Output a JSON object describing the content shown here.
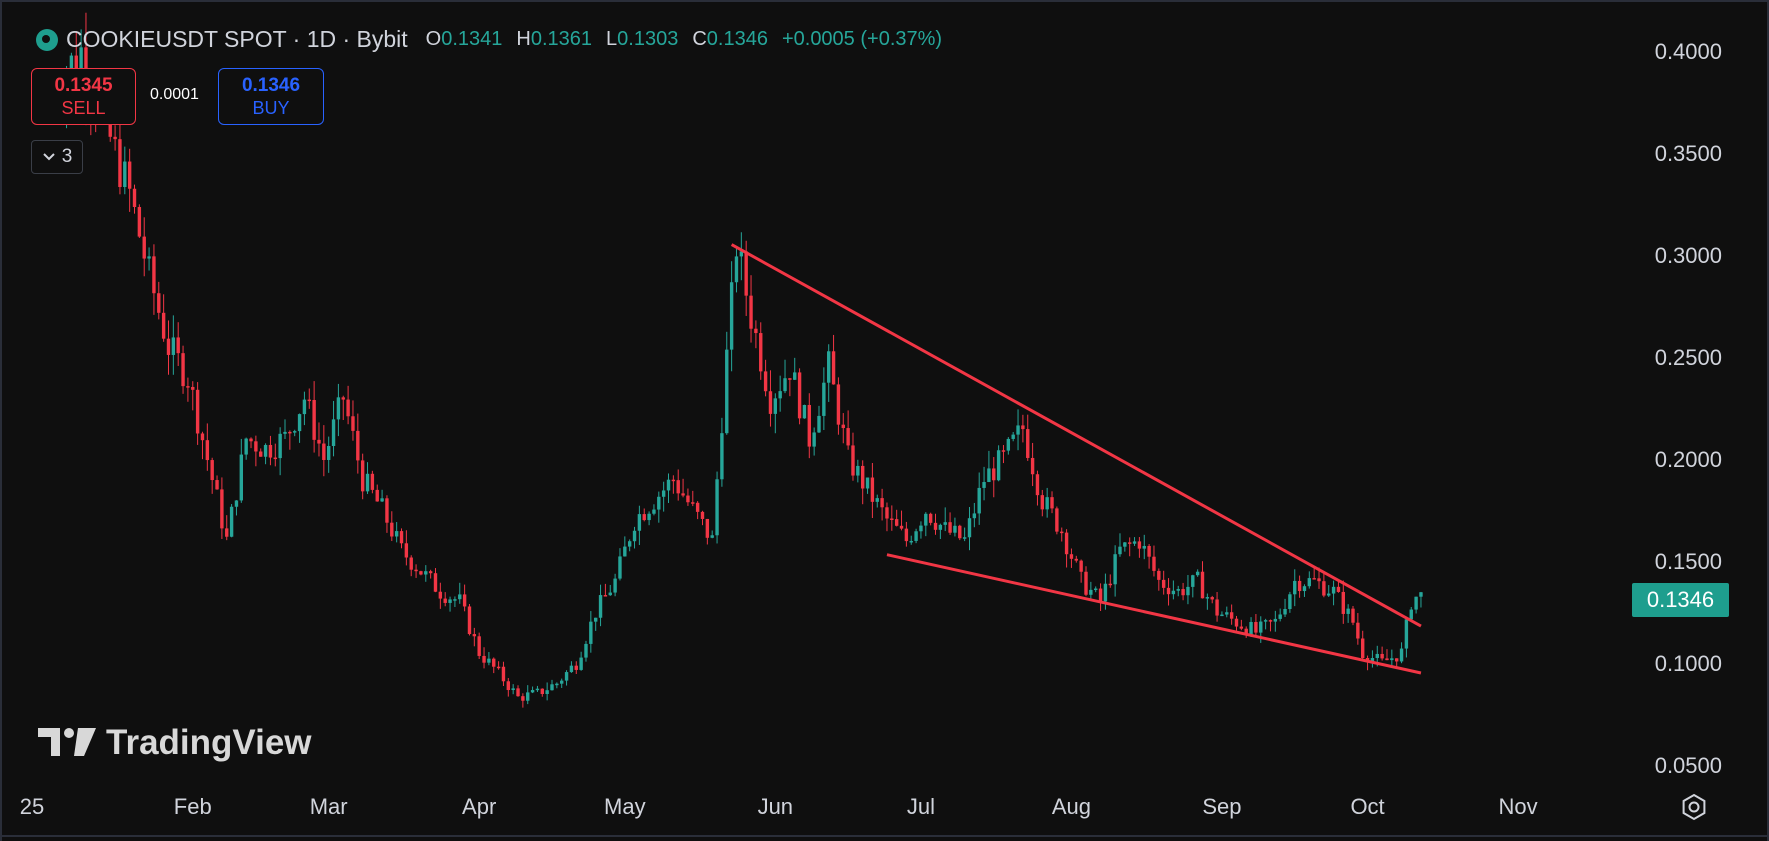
{
  "header": {
    "symbol": "COOKIEUSDT SPOT · 1D · Bybit",
    "open_label": "O",
    "open": "0.1341",
    "high_label": "H",
    "high": "0.1361",
    "low_label": "L",
    "low": "0.1303",
    "close_label": "C",
    "close": "0.1346",
    "change": "+0.0005 (+0.37%)"
  },
  "trade": {
    "sell_price": "0.1345",
    "sell_label": "SELL",
    "spread": "0.0001",
    "buy_price": "0.1346",
    "buy_label": "BUY"
  },
  "indicators_toggle": {
    "count": "3"
  },
  "watermark": "TradingView",
  "last_price_tag": "0.1346",
  "colors": {
    "up": "#26a69a",
    "down": "#f23645",
    "trendline": "#f23645",
    "background": "#0f0f0f",
    "text": "#d1d4dc"
  },
  "chart_data": {
    "type": "candlestick",
    "y_ticks": [
      "0.4000",
      "0.3500",
      "0.3000",
      "0.2500",
      "0.2000",
      "0.1500",
      "0.1000",
      "0.0500"
    ],
    "ylim": [
      0.045,
      0.42
    ],
    "x_ticks": [
      "25",
      "Feb",
      "Mar",
      "Apr",
      "May",
      "Jun",
      "Jul",
      "Aug",
      "Sep",
      "Oct",
      "Nov"
    ],
    "x_tick_days": [
      0,
      31,
      59,
      90,
      120,
      151,
      181,
      212,
      243,
      273,
      304
    ],
    "xlim": [
      -5,
      325
    ],
    "last_price": 0.1346,
    "trendlines": [
      {
        "name": "upper",
        "from": [
          142,
          0.305
        ],
        "to": [
          284,
          0.118
        ]
      },
      {
        "name": "lower",
        "from": [
          174,
          0.153
        ],
        "to": [
          284,
          0.095
        ]
      }
    ],
    "price_anchors": [
      [
        2,
        0.38
      ],
      [
        8,
        0.4
      ],
      [
        12,
        0.37
      ],
      [
        18,
        0.33
      ],
      [
        22,
        0.29
      ],
      [
        26,
        0.255
      ],
      [
        30,
        0.24
      ],
      [
        34,
        0.2
      ],
      [
        38,
        0.16
      ],
      [
        42,
        0.21
      ],
      [
        46,
        0.205
      ],
      [
        50,
        0.21
      ],
      [
        54,
        0.23
      ],
      [
        58,
        0.2
      ],
      [
        62,
        0.23
      ],
      [
        66,
        0.19
      ],
      [
        70,
        0.175
      ],
      [
        74,
        0.155
      ],
      [
        78,
        0.145
      ],
      [
        82,
        0.135
      ],
      [
        86,
        0.13
      ],
      [
        90,
        0.105
      ],
      [
        94,
        0.095
      ],
      [
        98,
        0.083
      ],
      [
        102,
        0.085
      ],
      [
        106,
        0.09
      ],
      [
        110,
        0.1
      ],
      [
        114,
        0.125
      ],
      [
        118,
        0.14
      ],
      [
        122,
        0.17
      ],
      [
        126,
        0.18
      ],
      [
        130,
        0.19
      ],
      [
        134,
        0.175
      ],
      [
        138,
        0.16
      ],
      [
        141,
        0.25
      ],
      [
        143,
        0.305
      ],
      [
        146,
        0.27
      ],
      [
        150,
        0.23
      ],
      [
        154,
        0.245
      ],
      [
        158,
        0.21
      ],
      [
        162,
        0.245
      ],
      [
        166,
        0.2
      ],
      [
        170,
        0.185
      ],
      [
        174,
        0.17
      ],
      [
        178,
        0.16
      ],
      [
        182,
        0.175
      ],
      [
        186,
        0.165
      ],
      [
        190,
        0.16
      ],
      [
        194,
        0.19
      ],
      [
        198,
        0.2
      ],
      [
        202,
        0.215
      ],
      [
        206,
        0.18
      ],
      [
        210,
        0.165
      ],
      [
        214,
        0.14
      ],
      [
        218,
        0.13
      ],
      [
        222,
        0.155
      ],
      [
        226,
        0.16
      ],
      [
        230,
        0.14
      ],
      [
        234,
        0.135
      ],
      [
        238,
        0.14
      ],
      [
        242,
        0.125
      ],
      [
        246,
        0.12
      ],
      [
        250,
        0.115
      ],
      [
        254,
        0.12
      ],
      [
        258,
        0.14
      ],
      [
        262,
        0.14
      ],
      [
        266,
        0.135
      ],
      [
        270,
        0.12
      ],
      [
        272,
        0.105
      ],
      [
        276,
        0.1
      ],
      [
        280,
        0.105
      ],
      [
        282,
        0.13
      ],
      [
        284,
        0.1346
      ]
    ]
  }
}
